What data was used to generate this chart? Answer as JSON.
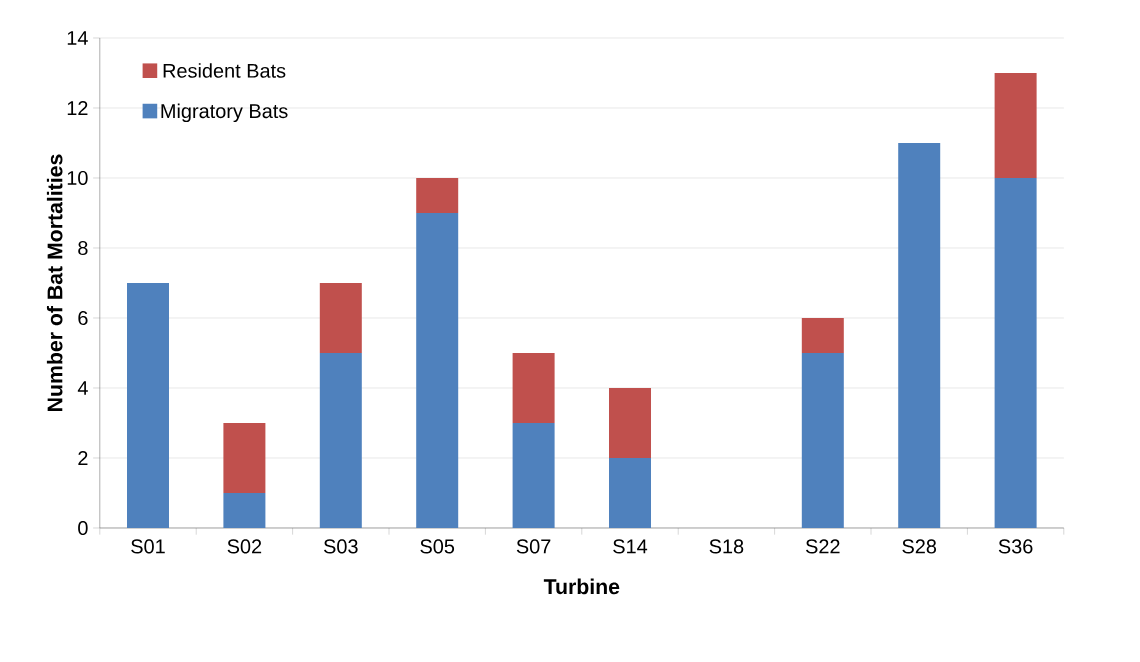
{
  "chart_data": {
    "type": "bar",
    "stacked": true,
    "xlabel": "Turbine",
    "ylabel": "Number of Bat Mortalities",
    "categories": [
      "S01",
      "S02",
      "S03",
      "S05",
      "S07",
      "S14",
      "S18",
      "S22",
      "S28",
      "S36"
    ],
    "series": [
      {
        "name": "Migratory Bats",
        "color": "#4f81bd",
        "values": [
          7,
          1,
          5,
          9,
          3,
          2,
          0,
          5,
          11,
          10
        ]
      },
      {
        "name": "Resident Bats",
        "color": "#c0504d",
        "values": [
          0,
          2,
          2,
          1,
          2,
          2,
          0,
          1,
          0,
          3
        ]
      }
    ],
    "ylim": [
      0,
      14
    ],
    "yticks": [
      0,
      2,
      4,
      6,
      8,
      10,
      12,
      14
    ],
    "grid": "y",
    "legend": "top left"
  }
}
